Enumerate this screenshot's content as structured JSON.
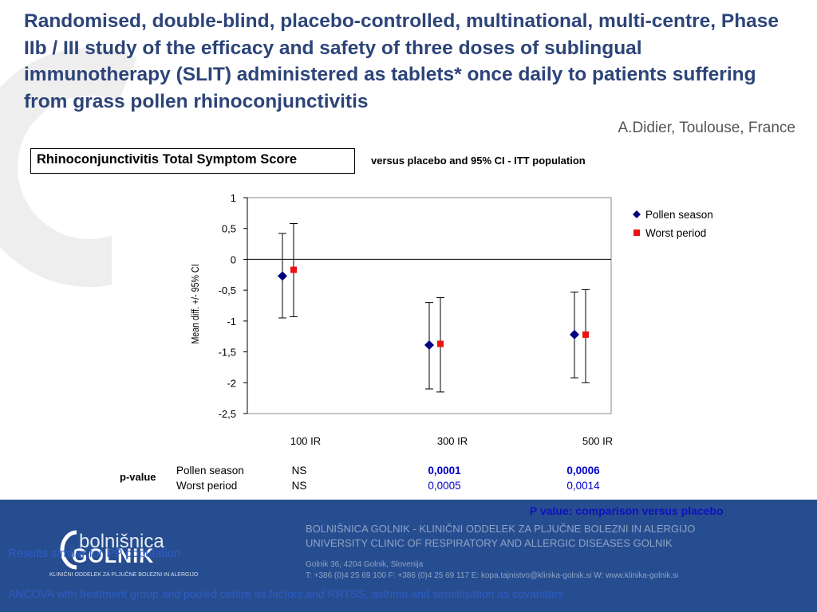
{
  "slide": {
    "title": "Randomised, double-blind, placebo-controlled, multinational, multi-centre, Phase IIb / III study of the efficacy and safety of three doses of sublingual immunotherapy (SLIT) administered as tablets* once daily to patients suffering from grass pollen rhinoconjunctivitis",
    "author": "A.Didier, Toulouse, France",
    "pvalue_note": "P value: comparison versus placebo",
    "footnote_1": "Results similar for PP population",
    "footnote_2": "ANCOVA with treatment group and pooled centre as factors and RRTSS, asthma and sensitisation as covariates"
  },
  "footer": {
    "logo_top": "bolnišnica",
    "logo_main": "GOLNIK",
    "logo_sub": "KLINIČNI ODDELEK ZA PLJUČNE BOLEZNI IN ALERGIJO",
    "clinic_line_1": "BOLNIŠNICA GOLNIK - KLINIČNI ODDELEK ZA PLJUČNE BOLEZNI IN ALERGIJO",
    "clinic_line_2": "UNIVERSITY CLINIC OF RESPIRATORY AND ALLERGIC DISEASES GOLNIK",
    "address_1": "Golnik 36, 4204 Golnik, Slovenija",
    "address_2": "T:  +386 (0)4 25 69 100 F: +386 (0)4 25 69 117 E: kopa.tajnistvo@klinika-golnik.si W: www.klinika-golnik.si"
  },
  "chart_data": {
    "type": "scatter",
    "title": "Rhinoconjunctivitis Total Symptom Score",
    "subtitle": "versus placebo and 95% CI - ITT population",
    "ylabel": "Mean diff. +/- 95% CI",
    "xlabel": "",
    "categories": [
      "100 IR",
      "300 IR",
      "500 IR"
    ],
    "ylim": [
      -2.5,
      1
    ],
    "yticks": [
      1,
      0.5,
      0,
      -0.5,
      -1,
      -1.5,
      -2,
      -2.5
    ],
    "ytick_labels": [
      "1",
      "0,5",
      "0",
      "-0,5",
      "-1",
      "-1,5",
      "-2",
      "-2,5"
    ],
    "grid": false,
    "legend_position": "right",
    "series": [
      {
        "name": "Pollen season",
        "marker": "diamond",
        "color": "#00007f",
        "values": [
          -0.27,
          -1.39,
          -1.22
        ],
        "ci_low": [
          -0.95,
          -2.1,
          -1.92
        ],
        "ci_high": [
          0.42,
          -0.7,
          -0.53
        ]
      },
      {
        "name": "Worst period",
        "marker": "square",
        "color": "#ee1111",
        "values": [
          -0.17,
          -1.37,
          -1.22
        ],
        "ci_low": [
          -0.93,
          -2.15,
          -2.0
        ],
        "ci_high": [
          0.58,
          -0.62,
          -0.49
        ]
      }
    ],
    "pvalue_table": {
      "label": "p-value",
      "rows": [
        {
          "name": "Pollen season",
          "values": [
            "NS",
            "0,0001",
            "0,0006"
          ],
          "bold": true
        },
        {
          "name": "Worst period",
          "values": [
            "NS",
            "0,0005",
            "0,0014"
          ],
          "bold": false
        }
      ],
      "colors": {
        "ns": "#000000",
        "significant": "#0000cc"
      }
    }
  }
}
